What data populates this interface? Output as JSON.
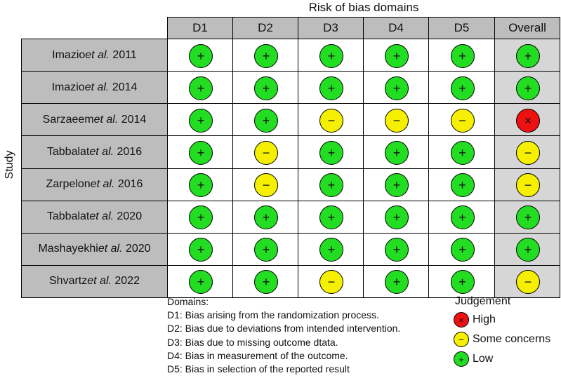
{
  "title": "Risk of bias domains",
  "y_label": "Study",
  "columns": [
    "D1",
    "D2",
    "D3",
    "D4",
    "D5",
    "Overall"
  ],
  "studies": [
    {
      "name": "Imazio",
      "etal": "et al.",
      "year": "2011",
      "judgements": [
        "low",
        "low",
        "low",
        "low",
        "low",
        "low"
      ]
    },
    {
      "name": "Imazio",
      "etal": "et al.",
      "year": "2014",
      "judgements": [
        "low",
        "low",
        "low",
        "low",
        "low",
        "low"
      ]
    },
    {
      "name": "Sarzaeem",
      "etal": "et al.",
      "year": "2014",
      "judgements": [
        "low",
        "low",
        "some",
        "some",
        "some",
        "high"
      ]
    },
    {
      "name": "Tabbalat",
      "etal": "et al.",
      "year": "2016",
      "judgements": [
        "low",
        "some",
        "low",
        "low",
        "low",
        "some"
      ]
    },
    {
      "name": "Zarpelon",
      "etal": "et al.",
      "year": "2016",
      "judgements": [
        "low",
        "some",
        "low",
        "low",
        "low",
        "some"
      ]
    },
    {
      "name": "Tabbalat",
      "etal": "et al.",
      "year": "2020",
      "judgements": [
        "low",
        "low",
        "low",
        "low",
        "low",
        "low"
      ]
    },
    {
      "name": "Mashayekhi",
      "etal": "et al.",
      "year": "2020",
      "judgements": [
        "low",
        "low",
        "low",
        "low",
        "low",
        "low"
      ]
    },
    {
      "name": "Shvartz",
      "etal": "et al.",
      "year": "2022",
      "judgements": [
        "low",
        "low",
        "some",
        "low",
        "low",
        "some"
      ]
    }
  ],
  "domains_title": "Domains:",
  "domains": [
    "D1: Bias arising from the randomization process.",
    "D2: Bias due to deviations from intended intervention.",
    "D3: Bias due to missing outcome dtata.",
    "D4: Bias in measurement of the outcome.",
    "D5: Bias in selection of the reported result"
  ],
  "judgement_title": "Judgement",
  "judgement_legend": [
    {
      "key": "high",
      "label": "High"
    },
    {
      "key": "some",
      "label": "Some concerns"
    },
    {
      "key": "low",
      "label": "Low"
    }
  ],
  "symbols": {
    "low": {
      "glyph": "+",
      "color": "#22dd22"
    },
    "some": {
      "glyph": "−",
      "color": "#f5f000"
    },
    "high": {
      "glyph": "×",
      "color": "#ee1111"
    }
  }
}
